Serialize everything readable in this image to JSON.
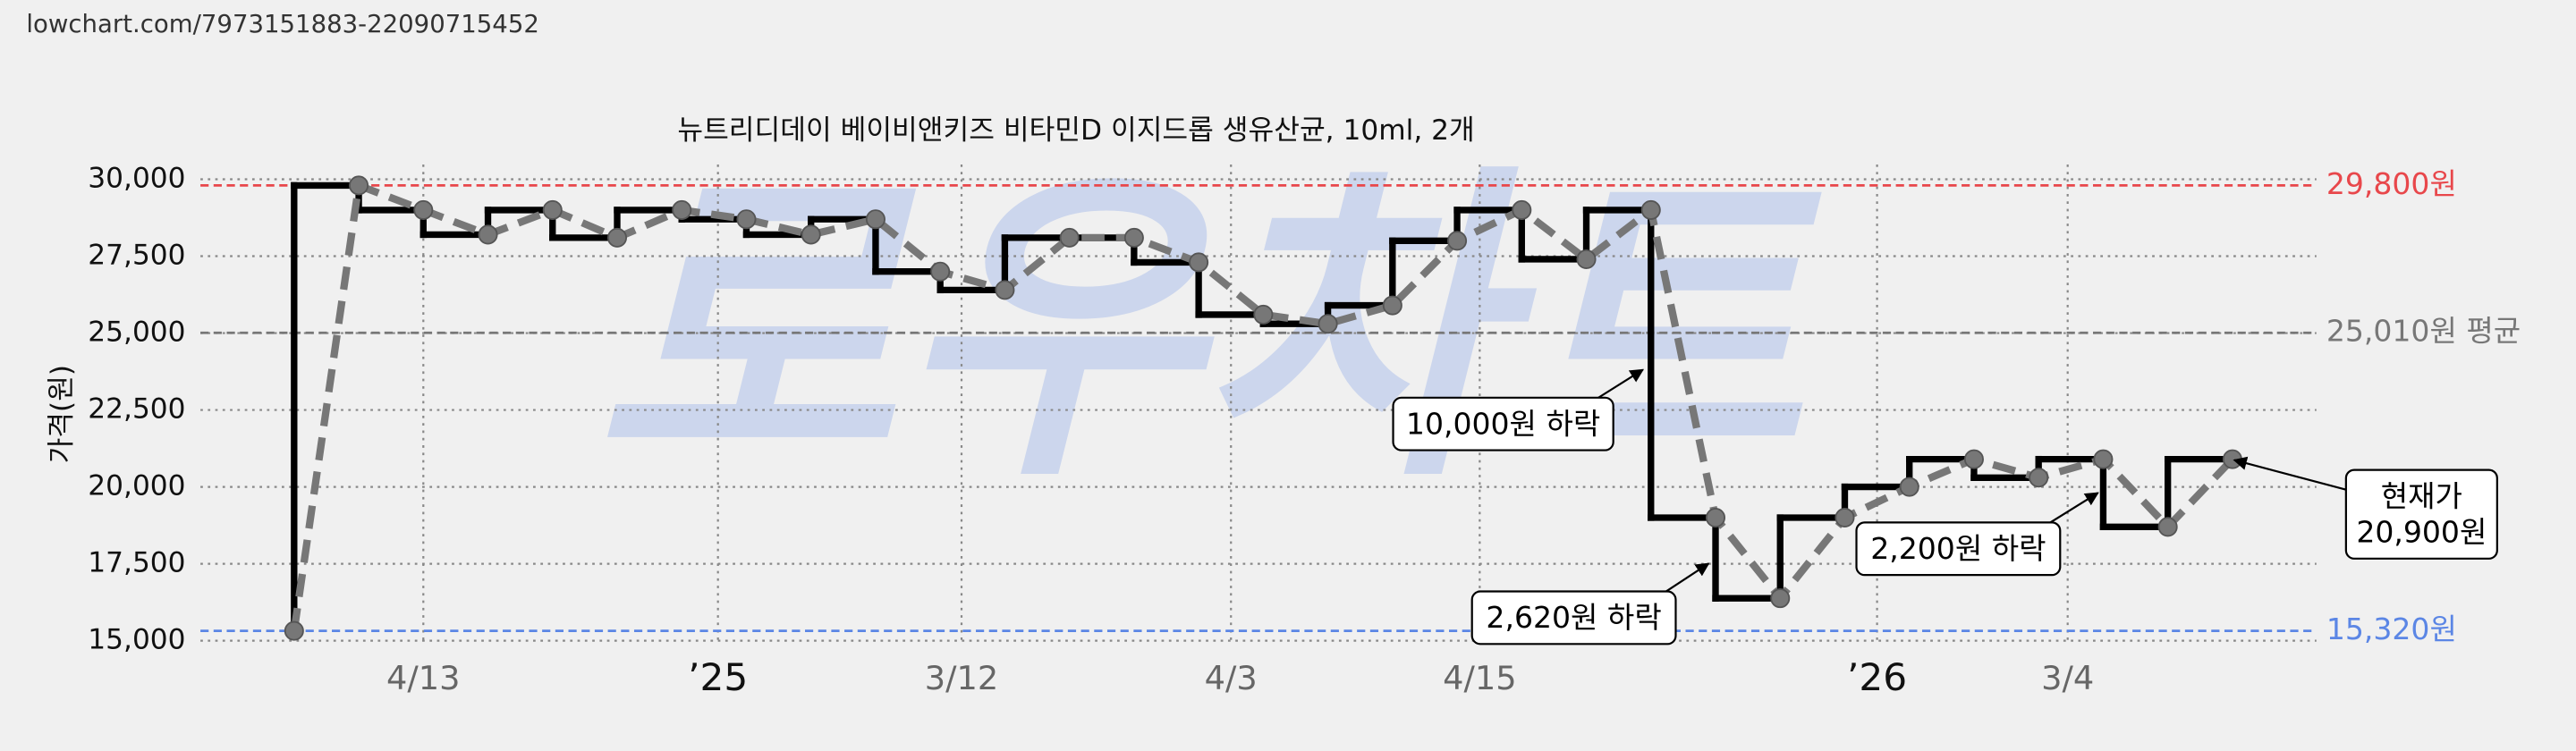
{
  "chart_data": {
    "type": "line",
    "url": "lowchart.com/7973151883-22090715452",
    "title": "뉴트리디데이 베이비앤키즈 비타민D 이지드롭 생유산균, 10ml, 2개",
    "y_label": "가격(원)",
    "watermark": "로우차트",
    "x": [
      0,
      1,
      2,
      3,
      4,
      5,
      6,
      7,
      8,
      9,
      10,
      11,
      12,
      13,
      14,
      15,
      16,
      17,
      18,
      19,
      20,
      21,
      22,
      23,
      24,
      25,
      26,
      27,
      28,
      29,
      30
    ],
    "values": [
      15320,
      29800,
      29000,
      28200,
      29000,
      28100,
      29000,
      28700,
      28200,
      28700,
      27000,
      26400,
      28100,
      28100,
      27300,
      25600,
      25300,
      25900,
      28000,
      29000,
      27400,
      29000,
      19000,
      16380,
      19000,
      20000,
      20900,
      20300,
      20900,
      18700,
      20900
    ],
    "step_color": "#000000",
    "line_color": "#777777",
    "xlim": [
      -1.45,
      31.3
    ],
    "xticks": [
      {
        "value": 2,
        "label": "4/13"
      },
      {
        "value": 6.56,
        "label": "’25"
      },
      {
        "value": 10.33,
        "label": "3/12"
      },
      {
        "value": 14.5,
        "label": "4/3"
      },
      {
        "value": 18.35,
        "label": "4/15"
      },
      {
        "value": 24.5,
        "label": "’26"
      },
      {
        "value": 27.45,
        "label": "3/4"
      }
    ],
    "ylim": [
      15000,
      30000
    ],
    "yticks": [
      {
        "value": 15000,
        "label": "15,000"
      },
      {
        "value": 17500,
        "label": "17,500"
      },
      {
        "value": 20000,
        "label": "20,000"
      },
      {
        "value": 22500,
        "label": "22,500"
      },
      {
        "value": 25000,
        "label": "25,000"
      },
      {
        "value": 27500,
        "label": "27,500"
      },
      {
        "value": 30000,
        "label": "30,000"
      }
    ],
    "grid": true,
    "reference_lines": [
      {
        "value": 29800,
        "label": "29,800원",
        "color": "#e8474b"
      },
      {
        "value": 25010,
        "label": "25,010원 평균",
        "color": "#777777"
      },
      {
        "value": 15320,
        "label": "15,320원",
        "color": "#5b86e5"
      }
    ],
    "annotations": [
      {
        "lines": [
          "10,000원 하락"
        ]
      },
      {
        "lines": [
          "2,620원 하락"
        ]
      },
      {
        "lines": [
          "2,200원 하락"
        ]
      },
      {
        "lines": [
          "현재가",
          "20,900원"
        ]
      }
    ]
  }
}
